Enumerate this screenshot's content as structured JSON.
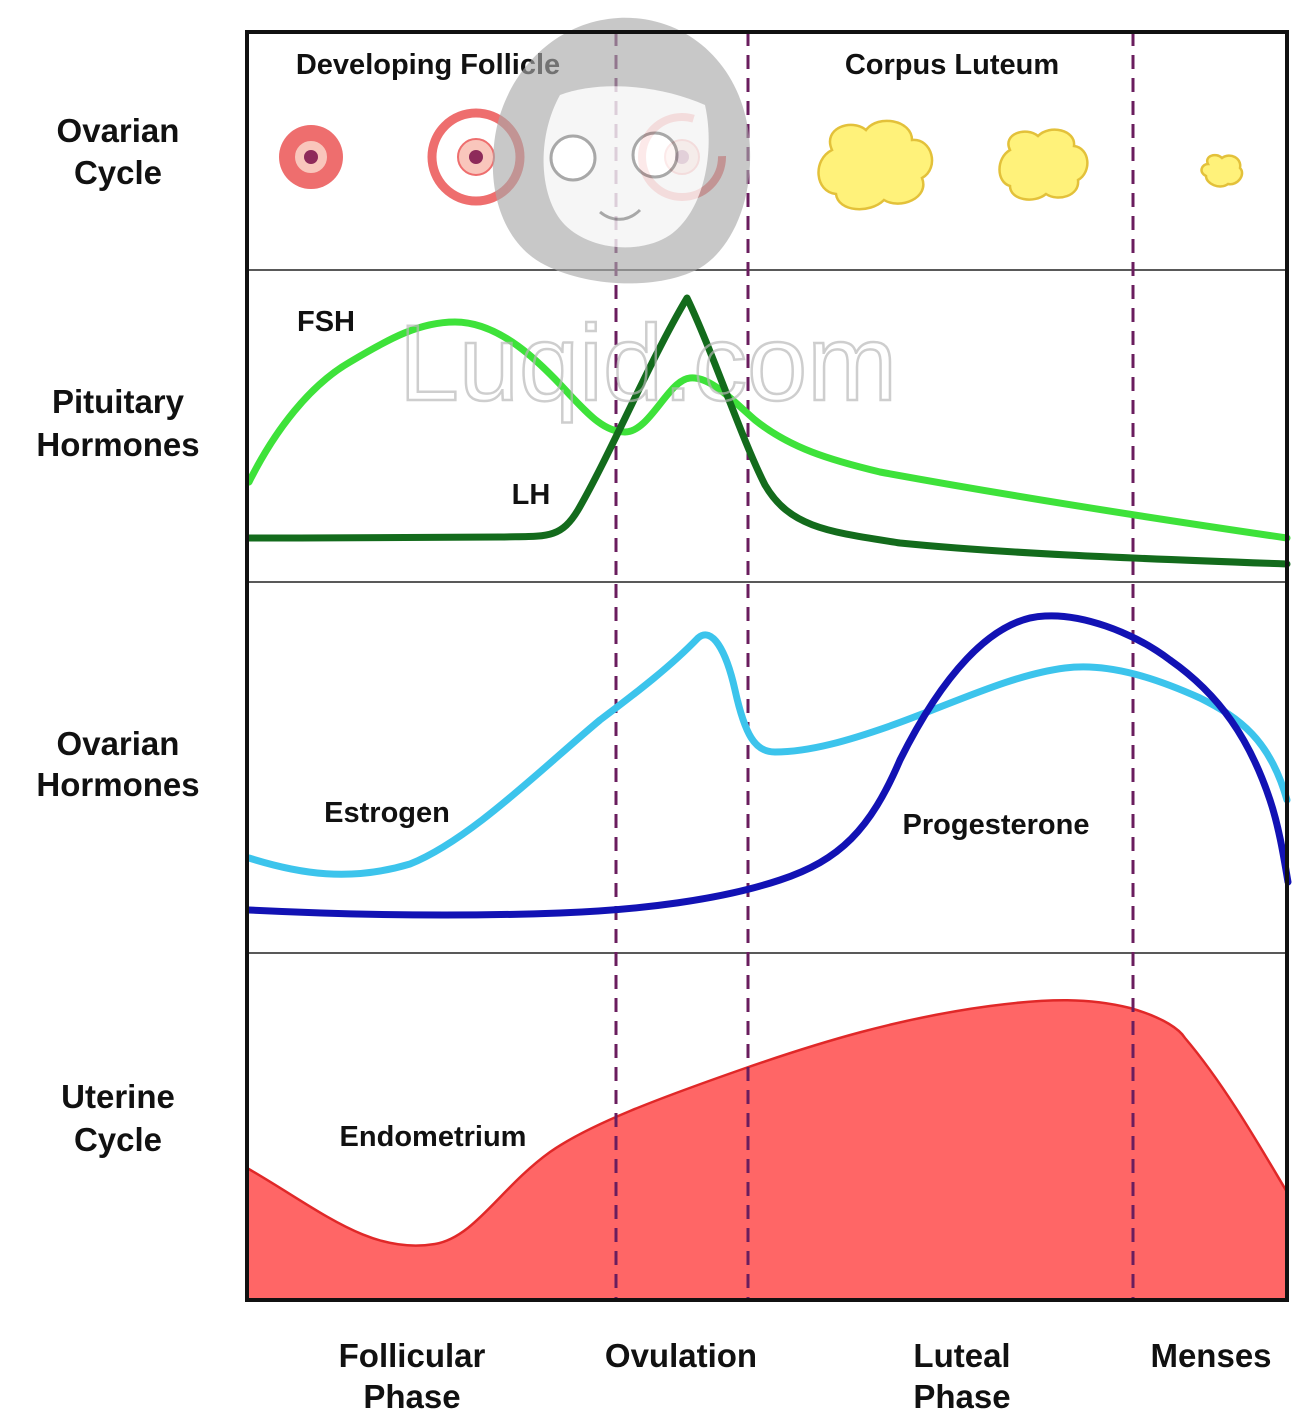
{
  "rows": [
    {
      "line1": "Ovarian",
      "line2": "Cycle"
    },
    {
      "line1": "Pituitary",
      "line2": "Hormones"
    },
    {
      "line1": "Ovarian",
      "line2": "Hormones"
    },
    {
      "line1": "Uterine",
      "line2": "Cycle"
    }
  ],
  "top_labels": {
    "developing": "Developing Follicle",
    "corpus": "Corpus Luteum"
  },
  "curve_labels": {
    "fsh": "FSH",
    "lh": "LH",
    "estrogen": "Estrogen",
    "progesterone": "Progesterone",
    "endometrium": "Endometrium"
  },
  "phases": [
    {
      "line1": "Follicular",
      "line2": "Phase"
    },
    {
      "line1": "Ovulation",
      "line2": ""
    },
    {
      "line1": "Luteal",
      "line2": "Phase"
    },
    {
      "line1": "Menses",
      "line2": ""
    }
  ],
  "watermark": "Luqid.com",
  "colors": {
    "fsh": "#3ee23a",
    "lh": "#136b1c",
    "estrogen": "#3cc4ec",
    "progesterone": "#1212b4",
    "endometrium_fill": "#ff6666",
    "endometrium_stroke": "#e02828",
    "phase_divider": "#6a1d5e",
    "follicle_ring": "#ee6e6e",
    "follicle_core": "#f9c6bc",
    "follicle_oocyte": "#8e2a5a",
    "corpus_fill": "#fff27a",
    "corpus_stroke": "#e3c13a"
  }
}
